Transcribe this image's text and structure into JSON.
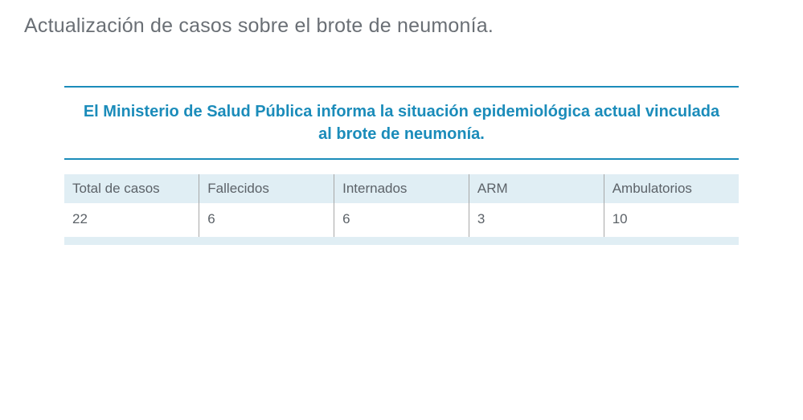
{
  "title": "Actualización de casos sobre el brote de neumonía.",
  "highlight": "El Ministerio de Salud Pública informa la situación epidemiológica actual vinculada al brote de neumonía.",
  "table": {
    "columns": [
      "Total de casos",
      "Fallecidos",
      "Internados",
      "ARM",
      "Ambulatorios"
    ],
    "rows": [
      [
        "22",
        "6",
        "6",
        "3",
        "10"
      ]
    ],
    "header_bg": "#e0eef4",
    "cell_border_color": "#a8a8a8",
    "text_color": "#5c6268"
  },
  "colors": {
    "accent": "#1b8cba",
    "title_color": "#6a6f75",
    "background": "#ffffff"
  }
}
